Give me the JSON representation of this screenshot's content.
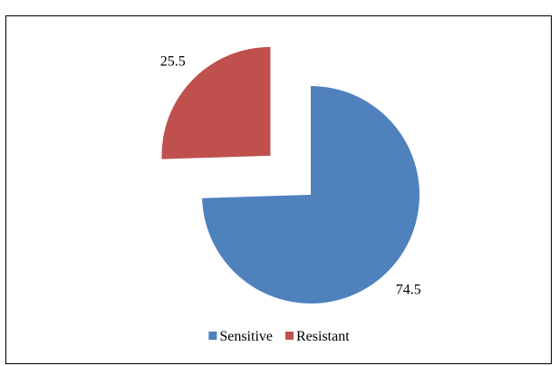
{
  "chart_data": {
    "type": "pie",
    "title": "",
    "series": [
      {
        "name": "",
        "slices": [
          {
            "label": "Sensitive",
            "value": 74.5,
            "data_label": "74.5",
            "color": "#4F81BD",
            "exploded": false
          },
          {
            "label": "Resistant",
            "value": 25.5,
            "data_label": "25.5",
            "color": "#C0504D",
            "exploded": true
          }
        ]
      }
    ],
    "legend": {
      "position": "bottom",
      "entries": [
        "Sensitive",
        "Resistant"
      ]
    },
    "start_angle": "12 o'clock",
    "direction": "clockwise"
  }
}
